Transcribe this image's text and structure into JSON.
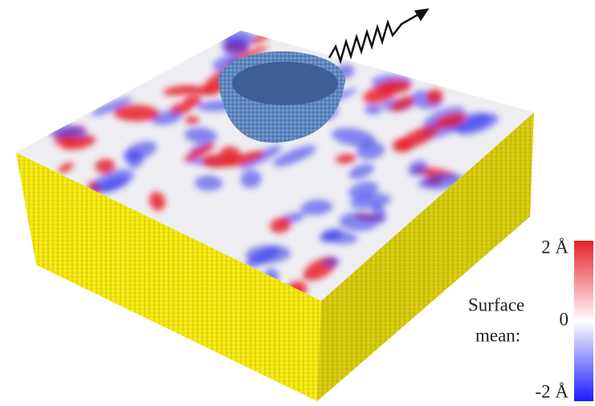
{
  "colorbar": {
    "title_lines": [
      "Surface",
      "mean:"
    ],
    "range": [
      -2,
      2
    ],
    "ticks": [
      {
        "value": 2,
        "label": "2 Å"
      },
      0,
      {
        "value": -2,
        "label": "-2 Å"
      }
    ],
    "colors": [
      "#1a1aff",
      "#ffffff",
      "#e8202a"
    ]
  }
}
